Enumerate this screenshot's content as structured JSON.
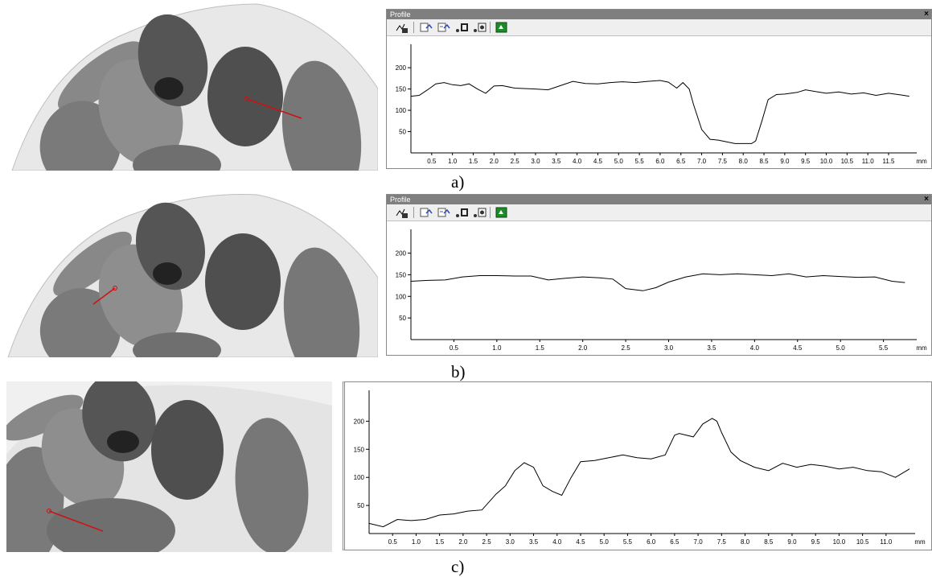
{
  "panels": [
    {
      "id": "a",
      "title": "Profile",
      "close_label": "×",
      "caption": "a)",
      "toolbar": [
        "profile-save-icon",
        "copy-graph-icon",
        "copy-data-icon",
        "display-points-icon",
        "display-line-icon",
        "export-icon"
      ],
      "chart_data": {
        "type": "line",
        "xlabel": "mm",
        "ylim": [
          0,
          255
        ],
        "yticks": [
          50,
          100,
          150,
          200
        ],
        "xticks": [
          "0.5",
          "1.0",
          "1.5",
          "2.0",
          "2.5",
          "3.0",
          "3.5",
          "4.0",
          "4.5",
          "5.0",
          "5.5",
          "6.0",
          "6.5",
          "7.0",
          "7.5",
          "8.0",
          "8.5",
          "9.0",
          "9.5",
          "10.0",
          "10.5",
          "11.0",
          "11.5"
        ],
        "xlim": [
          0,
          12.1
        ],
        "series": [
          {
            "x": [
              0,
              0.2,
              0.4,
              0.6,
              0.8,
              1.0,
              1.2,
              1.4,
              1.6,
              1.8,
              2.0,
              2.2,
              2.5,
              3.0,
              3.3,
              3.6,
              3.9,
              4.2,
              4.5,
              4.8,
              5.1,
              5.4,
              5.7,
              6.0,
              6.2,
              6.4,
              6.55,
              6.7,
              6.8,
              7.0,
              7.2,
              7.4,
              7.6,
              7.8,
              8.0,
              8.2,
              8.3,
              8.45,
              8.6,
              8.8,
              9.0,
              9.3,
              9.5,
              9.8,
              10.0,
              10.3,
              10.6,
              10.9,
              11.2,
              11.5,
              11.8,
              12.0
            ],
            "y": [
              133,
              135,
              148,
              162,
              165,
              160,
              158,
              162,
              150,
              140,
              157,
              158,
              152,
              150,
              148,
              158,
              168,
              163,
              162,
              165,
              167,
              165,
              168,
              170,
              166,
              152,
              165,
              150,
              115,
              55,
              32,
              30,
              26,
              22,
              22,
              22,
              28,
              75,
              125,
              137,
              138,
              142,
              148,
              143,
              140,
              143,
              138,
              141,
              135,
              140,
              136,
              133
            ]
          }
        ]
      }
    },
    {
      "id": "b",
      "title": "Profile",
      "close_label": "×",
      "caption": "b)",
      "toolbar": [
        "profile-save-icon",
        "copy-graph-icon",
        "copy-data-icon",
        "display-points-icon",
        "display-line-icon",
        "export-icon"
      ],
      "chart_data": {
        "type": "line",
        "xlabel": "mm",
        "ylim": [
          0,
          255
        ],
        "yticks": [
          50,
          100,
          150,
          200
        ],
        "xticks": [
          "0.5",
          "1.0",
          "1.5",
          "2.0",
          "2.5",
          "3.0",
          "3.5",
          "4.0",
          "4.5",
          "5.0",
          "5.5"
        ],
        "xlim": [
          0,
          5.85
        ],
        "series": [
          {
            "x": [
              0,
              0.2,
              0.4,
              0.6,
              0.8,
              1.0,
              1.2,
              1.4,
              1.6,
              1.8,
              2.0,
              2.2,
              2.35,
              2.5,
              2.7,
              2.85,
              3.0,
              3.2,
              3.4,
              3.6,
              3.8,
              4.0,
              4.2,
              4.4,
              4.6,
              4.8,
              5.0,
              5.2,
              5.4,
              5.6,
              5.75
            ],
            "y": [
              135,
              137,
              138,
              145,
              148,
              148,
              147,
              147,
              138,
              142,
              145,
              143,
              140,
              118,
              113,
              120,
              133,
              145,
              152,
              150,
              152,
              150,
              148,
              152,
              145,
              148,
              146,
              144,
              145,
              135,
              132
            ]
          }
        ]
      }
    },
    {
      "id": "c",
      "caption": "c)",
      "chart_data": {
        "type": "line",
        "xlabel": "mm",
        "ylim": [
          0,
          255
        ],
        "yticks": [
          50,
          100,
          150,
          200
        ],
        "xticks": [
          "0.5",
          "1.0",
          "1.5",
          "2.0",
          "2.5",
          "3.0",
          "3.5",
          "4.0",
          "4.5",
          "5.0",
          "5.5",
          "6.0",
          "6.5",
          "7.0",
          "7.5",
          "8.0",
          "8.5",
          "9.0",
          "9.5",
          "10.0",
          "10.5",
          "11.0"
        ],
        "xlim": [
          0,
          11.55
        ],
        "series": [
          {
            "x": [
              0,
              0.3,
              0.6,
              0.9,
              1.2,
              1.5,
              1.8,
              2.1,
              2.4,
              2.7,
              2.9,
              3.1,
              3.3,
              3.5,
              3.7,
              3.9,
              4.1,
              4.3,
              4.5,
              4.8,
              5.1,
              5.4,
              5.7,
              6.0,
              6.3,
              6.5,
              6.6,
              6.9,
              7.1,
              7.3,
              7.4,
              7.5,
              7.7,
              7.9,
              8.2,
              8.5,
              8.8,
              9.1,
              9.4,
              9.7,
              10.0,
              10.3,
              10.6,
              10.9,
              11.2,
              11.5
            ],
            "y": [
              18,
              12,
              25,
              23,
              25,
              33,
              35,
              40,
              42,
              70,
              85,
              112,
              126,
              118,
              85,
              75,
              68,
              100,
              128,
              130,
              135,
              140,
              135,
              133,
              140,
              175,
              178,
              172,
              195,
              205,
              200,
              180,
              145,
              130,
              118,
              112,
              125,
              118,
              123,
              120,
              115,
              118,
              112,
              110,
              100,
              115
            ]
          }
        ]
      }
    }
  ]
}
